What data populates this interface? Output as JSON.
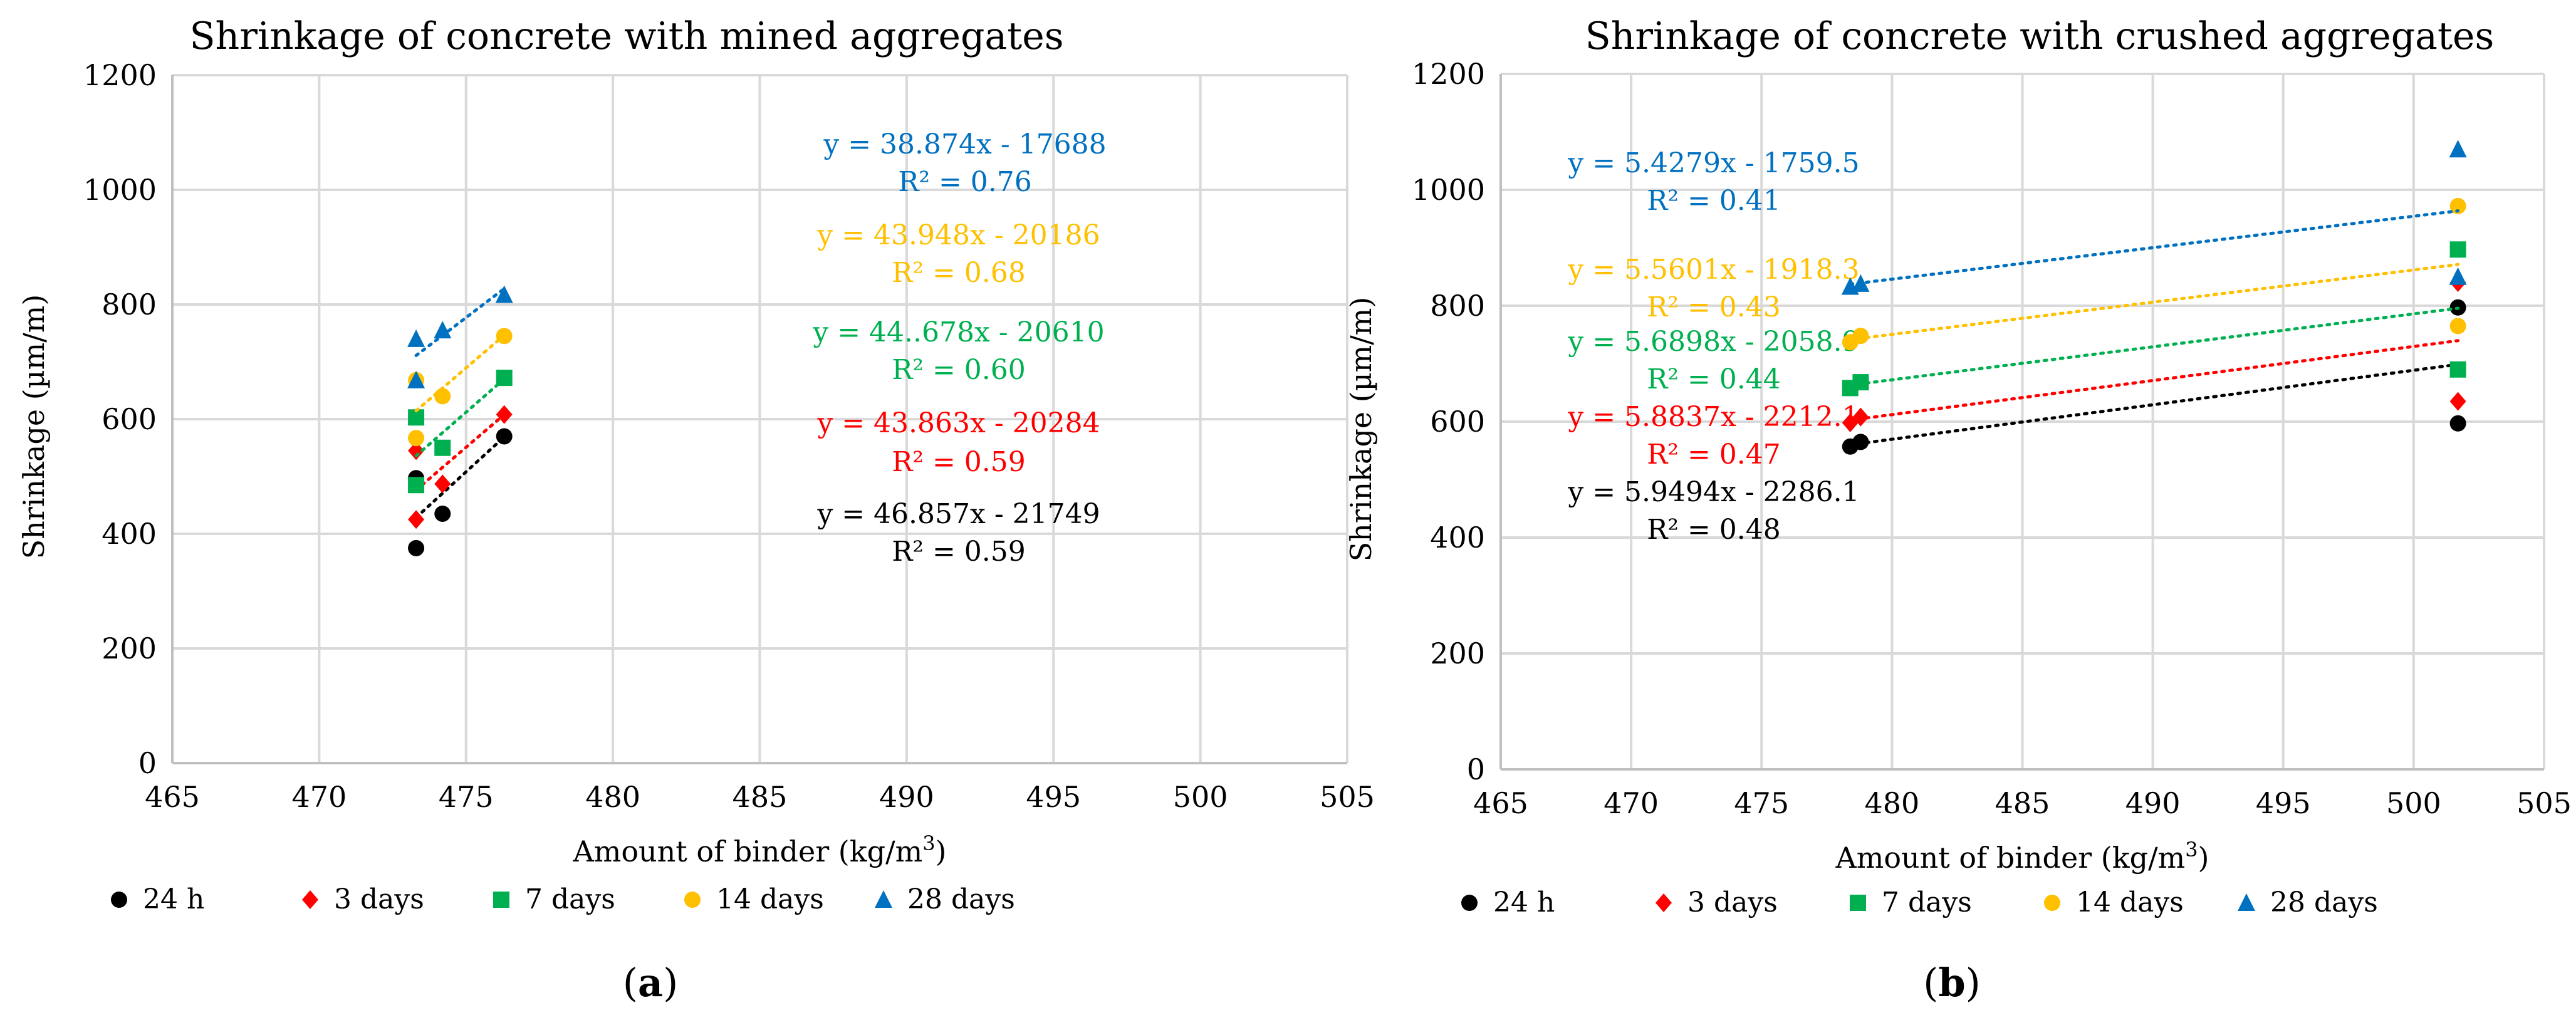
{
  "series_meta": [
    {
      "key": "24h",
      "label": "24 h",
      "color": "#000000",
      "marker": "circle"
    },
    {
      "key": "3d",
      "label": "3 days",
      "color": "#ff0000",
      "marker": "diamond"
    },
    {
      "key": "7d",
      "label": "7 days",
      "color": "#00b050",
      "marker": "square"
    },
    {
      "key": "14d",
      "label": "14 days",
      "color": "#ffc000",
      "marker": "circle"
    },
    {
      "key": "28d",
      "label": "28 days",
      "color": "#0070c0",
      "marker": "triangle"
    }
  ],
  "chart_data": [
    {
      "type": "scatter",
      "title": "Shrinkage of concrete with mined aggregates",
      "xlabel": "Amount of binder (kg/m",
      "xlabel_sup": "3",
      "xlabel_tail": ")",
      "ylabel": "Shrinkage (µm/m)",
      "xlim": [
        465,
        505
      ],
      "ylim": [
        0,
        1200
      ],
      "xticks": [
        465,
        470,
        475,
        480,
        485,
        490,
        495,
        500,
        505
      ],
      "yticks": [
        0,
        200,
        400,
        600,
        800,
        1000,
        1200
      ],
      "grid": true,
      "legend_position": "bottom",
      "panel_label": "a",
      "series": [
        {
          "name": "24 h",
          "x": [
            473.3,
            473.3,
            474.2,
            476.3
          ],
          "y": [
            375,
            497,
            435,
            570
          ],
          "trendline": {
            "slope": 46.857,
            "intercept": -21749,
            "x_range": [
              473.3,
              476.3
            ]
          },
          "equation": "y = 46.857x - 21749",
          "r2": "R² = 0.59"
        },
        {
          "name": "3 days",
          "x": [
            473.3,
            473.3,
            474.2,
            476.3
          ],
          "y": [
            425,
            545,
            487,
            608
          ],
          "trendline": {
            "slope": 43.863,
            "intercept": -20284,
            "x_range": [
              473.3,
              476.3
            ]
          },
          "equation": "y = 43.863x - 20284",
          "r2": "R² = 0.59"
        },
        {
          "name": "7 days",
          "x": [
            473.3,
            473.3,
            474.2,
            476.3
          ],
          "y": [
            485,
            603,
            550,
            672
          ],
          "trendline": {
            "slope": 44.678,
            "intercept": -20610,
            "x_range": [
              473.3,
              476.3
            ]
          },
          "equation": "y = 44..678x - 20610",
          "r2": "R² = 0.60"
        },
        {
          "name": "14 days",
          "x": [
            473.3,
            473.3,
            474.2,
            476.3
          ],
          "y": [
            567,
            668,
            640,
            745
          ],
          "trendline": {
            "slope": 43.948,
            "intercept": -20186,
            "x_range": [
              473.3,
              476.3
            ]
          },
          "equation": "y = 43.948x - 20186",
          "r2": "R² = 0.68"
        },
        {
          "name": "28 days",
          "x": [
            473.3,
            473.3,
            474.2,
            476.3
          ],
          "y": [
            668,
            740,
            755,
            817
          ],
          "trendline": {
            "slope": 38.874,
            "intercept": -17688,
            "x_range": [
              473.3,
              476.3
            ]
          },
          "equation": "y = 38.874x - 17688",
          "r2": "R² = 0.76"
        }
      ]
    },
    {
      "type": "scatter",
      "title": "Shrinkage of concrete with crushed aggregates",
      "xlabel": "Amount of binder (kg/m",
      "xlabel_sup": "3",
      "xlabel_tail": ")",
      "ylabel": "Shrinkage (µm/m)",
      "xlim": [
        465,
        505
      ],
      "ylim": [
        0,
        1200
      ],
      "xticks": [
        465,
        470,
        475,
        480,
        485,
        490,
        495,
        500,
        505
      ],
      "yticks": [
        0,
        200,
        400,
        600,
        800,
        1000,
        1200
      ],
      "grid": true,
      "legend_position": "bottom",
      "panel_label": "b",
      "series": [
        {
          "name": "24 h",
          "x": [
            478.4,
            478.8,
            501.7,
            501.7
          ],
          "y": [
            557,
            565,
            597,
            797
          ],
          "trendline": {
            "slope": 5.9494,
            "intercept": -2286.1,
            "x_range": [
              478.4,
              501.7
            ]
          },
          "equation": "y = 5.9494x - 2286.1",
          "r2": "R² = 0.48"
        },
        {
          "name": "3 days",
          "x": [
            478.4,
            478.8,
            501.7,
            501.7
          ],
          "y": [
            598,
            608,
            635,
            840
          ],
          "trendline": {
            "slope": 5.8837,
            "intercept": -2212.1,
            "x_range": [
              478.4,
              501.7
            ]
          },
          "equation": "y = 5.8837x - 2212.1",
          "r2": "R² = 0.47"
        },
        {
          "name": "7 days",
          "x": [
            478.4,
            478.8,
            501.7,
            501.7
          ],
          "y": [
            658,
            668,
            690,
            897
          ],
          "trendline": {
            "slope": 5.6898,
            "intercept": -2058.9,
            "x_range": [
              478.4,
              501.7
            ]
          },
          "equation": "y = 5.6898x - 2058.9",
          "r2": "R² = 0.44"
        },
        {
          "name": "14 days",
          "x": [
            478.4,
            478.8,
            501.7,
            501.7
          ],
          "y": [
            737,
            748,
            765,
            972
          ],
          "trendline": {
            "slope": 5.5601,
            "intercept": -1918.3,
            "x_range": [
              478.4,
              501.7
            ]
          },
          "equation": "y = 5.5601x - 1918.3",
          "r2": "R² = 0.43"
        },
        {
          "name": "28 days",
          "x": [
            478.4,
            478.8,
            501.7,
            501.7
          ],
          "y": [
            833,
            838,
            850,
            1070
          ],
          "trendline": {
            "slope": 5.4279,
            "intercept": -1759.5,
            "x_range": [
              478.4,
              501.7
            ]
          },
          "equation": "y = 5.4279x - 1759.5",
          "r2": "R² = 0.41"
        }
      ]
    }
  ]
}
